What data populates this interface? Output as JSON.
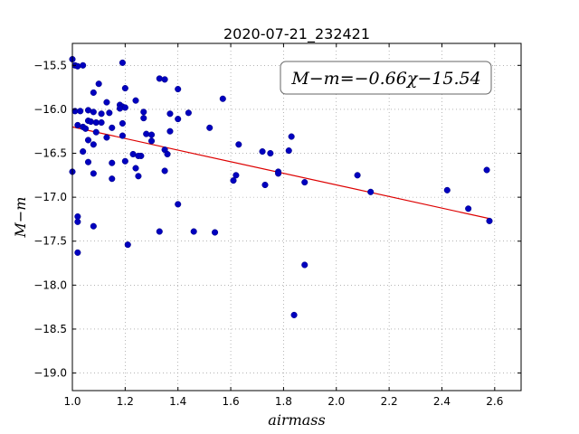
{
  "chart_data": {
    "type": "scatter",
    "title": "2020-07-21_232421",
    "xlabel": "airmass",
    "ylabel": "M−m",
    "xlim": [
      1.0,
      2.7
    ],
    "ylim": [
      -19.2,
      -15.25
    ],
    "y_inverted": true,
    "grid": true,
    "x_ticks": [
      "1.0",
      "1.2",
      "1.4",
      "1.6",
      "1.8",
      "2.0",
      "2.2",
      "2.4",
      "2.6"
    ],
    "y_ticks": [
      "−15.5",
      "−16.0",
      "−16.5",
      "−17.0",
      "−17.5",
      "−18.0",
      "−18.5",
      "−19.0"
    ],
    "x_tick_values": [
      1.0,
      1.2,
      1.4,
      1.6,
      1.8,
      2.0,
      2.2,
      2.4,
      2.6
    ],
    "y_tick_values": [
      -15.5,
      -16.0,
      -16.5,
      -17.0,
      -17.5,
      -18.0,
      -18.5,
      -19.0
    ],
    "annotation": "M−m=−0.66χ−15.54",
    "colors": {
      "points": "#0000bf",
      "fit": "#dd0000",
      "grid": "#888888"
    },
    "series": [
      {
        "points": [
          [
            1.0,
            -15.43
          ],
          [
            1.01,
            -15.5
          ],
          [
            1.02,
            -15.51
          ],
          [
            1.04,
            -15.5
          ],
          [
            1.19,
            -15.47
          ],
          [
            1.33,
            -15.65
          ],
          [
            1.35,
            -15.66
          ],
          [
            1.1,
            -15.71
          ],
          [
            1.2,
            -15.76
          ],
          [
            1.4,
            -15.77
          ],
          [
            1.08,
            -15.81
          ],
          [
            1.57,
            -15.88
          ],
          [
            1.24,
            -15.9
          ],
          [
            1.13,
            -15.92
          ],
          [
            1.18,
            -15.95
          ],
          [
            1.19,
            -15.97
          ],
          [
            1.18,
            -15.99
          ],
          [
            1.2,
            -15.98
          ],
          [
            1.01,
            -16.02
          ],
          [
            1.03,
            -16.02
          ],
          [
            1.06,
            -16.01
          ],
          [
            1.08,
            -16.03
          ],
          [
            1.11,
            -16.05
          ],
          [
            1.14,
            -16.04
          ],
          [
            1.27,
            -16.03
          ],
          [
            1.37,
            -16.05
          ],
          [
            1.44,
            -16.04
          ],
          [
            1.27,
            -16.1
          ],
          [
            1.4,
            -16.11
          ],
          [
            1.06,
            -16.13
          ],
          [
            1.07,
            -16.14
          ],
          [
            1.09,
            -16.15
          ],
          [
            1.11,
            -16.15
          ],
          [
            1.02,
            -16.18
          ],
          [
            1.04,
            -16.2
          ],
          [
            1.15,
            -16.21
          ],
          [
            1.19,
            -16.16
          ],
          [
            1.05,
            -16.22
          ],
          [
            1.09,
            -16.26
          ],
          [
            1.13,
            -16.32
          ],
          [
            1.19,
            -16.3
          ],
          [
            1.28,
            -16.28
          ],
          [
            1.3,
            -16.29
          ],
          [
            1.52,
            -16.21
          ],
          [
            1.37,
            -16.25
          ],
          [
            1.06,
            -16.35
          ],
          [
            1.08,
            -16.4
          ],
          [
            1.3,
            -16.36
          ],
          [
            1.63,
            -16.4
          ],
          [
            1.83,
            -16.31
          ],
          [
            1.04,
            -16.48
          ],
          [
            1.23,
            -16.51
          ],
          [
            1.26,
            -16.53
          ],
          [
            1.35,
            -16.46
          ],
          [
            1.36,
            -16.51
          ],
          [
            1.72,
            -16.48
          ],
          [
            1.75,
            -16.5
          ],
          [
            1.82,
            -16.47
          ],
          [
            1.06,
            -16.6
          ],
          [
            1.15,
            -16.61
          ],
          [
            1.2,
            -16.59
          ],
          [
            1.25,
            -16.53
          ],
          [
            1.24,
            -16.67
          ],
          [
            1.35,
            -16.7
          ],
          [
            1.08,
            -16.73
          ],
          [
            1.15,
            -16.79
          ],
          [
            1.25,
            -16.76
          ],
          [
            1.62,
            -16.75
          ],
          [
            1.61,
            -16.81
          ],
          [
            1.78,
            -16.71
          ],
          [
            1.78,
            -16.73
          ],
          [
            1.73,
            -16.86
          ],
          [
            1.88,
            -16.83
          ],
          [
            2.08,
            -16.75
          ],
          [
            2.13,
            -16.94
          ],
          [
            2.42,
            -16.92
          ],
          [
            2.57,
            -16.69
          ],
          [
            1.0,
            -16.71
          ],
          [
            1.4,
            -17.08
          ],
          [
            2.5,
            -17.13
          ],
          [
            1.02,
            -17.22
          ],
          [
            1.02,
            -17.28
          ],
          [
            2.58,
            -17.27
          ],
          [
            1.08,
            -17.33
          ],
          [
            1.33,
            -17.39
          ],
          [
            1.46,
            -17.39
          ],
          [
            1.54,
            -17.4
          ],
          [
            1.21,
            -17.54
          ],
          [
            1.02,
            -17.63
          ],
          [
            1.88,
            -17.77
          ],
          [
            1.84,
            -18.34
          ]
        ]
      }
    ],
    "fit": {
      "slope": -0.66,
      "intercept": -15.54,
      "x_range": [
        1.0,
        2.58
      ]
    }
  }
}
